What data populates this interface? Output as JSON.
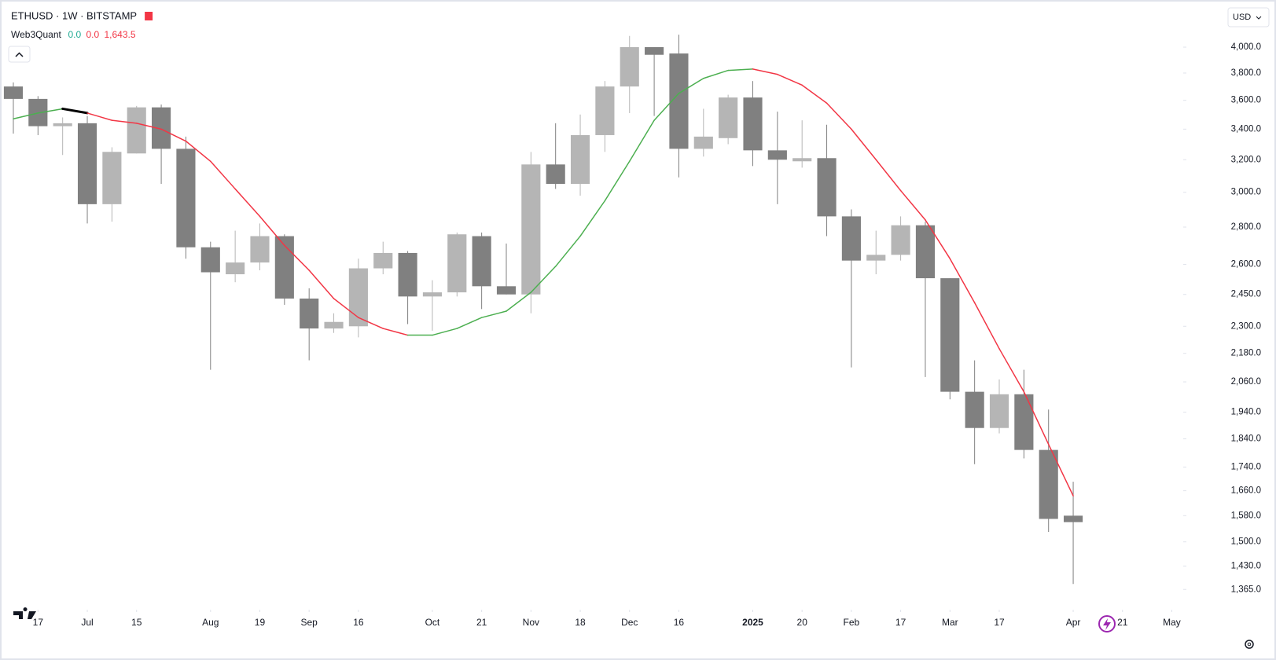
{
  "chart_data": {
    "type": "candlestick",
    "title": "ETHUSD · 1W · BITSTAMP",
    "currency": "USD",
    "indicator": {
      "name": "Web3Quant",
      "readouts": [
        {
          "text": "0.0",
          "color": "#22ab94"
        },
        {
          "text": "0.0",
          "color": "#f23645"
        },
        {
          "text": "1,643.5",
          "color": "#f23645"
        }
      ]
    },
    "up_color": "#b5b5b5",
    "down_color": "#808080",
    "open": [
      3700,
      3610,
      3420,
      3440,
      2930,
      3240,
      3550,
      3270,
      2690,
      2550,
      2610,
      2750,
      2430,
      2290,
      2300,
      2580,
      2660,
      2440,
      2460,
      2750,
      2490,
      2450,
      3170,
      3050,
      3360,
      3700,
      4000,
      3950,
      3270,
      3340,
      3620,
      3260,
      3190,
      3210,
      2860,
      2620,
      2650,
      2810,
      2530,
      2020,
      1880,
      2010,
      1800,
      1580
    ],
    "high": [
      3730,
      3630,
      3480,
      3490,
      3280,
      3560,
      3570,
      3350,
      2720,
      2780,
      2820,
      2760,
      2480,
      2360,
      2630,
      2720,
      2670,
      2520,
      2770,
      2770,
      2710,
      3250,
      3440,
      3500,
      3740,
      4090,
      4000,
      4100,
      3540,
      3640,
      3740,
      3520,
      3460,
      3430,
      2900,
      2780,
      2860,
      2830,
      2530,
      2150,
      2070,
      2110,
      1950,
      1690
    ],
    "low": [
      3370,
      3360,
      3230,
      2820,
      2830,
      3240,
      3050,
      2630,
      2110,
      2510,
      2570,
      2400,
      2150,
      2270,
      2250,
      2550,
      2310,
      2280,
      2440,
      2380,
      2450,
      2360,
      3020,
      2980,
      3250,
      3510,
      3490,
      3090,
      3220,
      3300,
      3160,
      2930,
      3150,
      2750,
      2120,
      2550,
      2620,
      2080,
      1990,
      1750,
      1860,
      1770,
      1530,
      1380
    ],
    "close": [
      3610,
      3420,
      3440,
      2930,
      3250,
      3550,
      3270,
      2690,
      2560,
      2610,
      2750,
      2430,
      2290,
      2320,
      2580,
      2660,
      2440,
      2460,
      2760,
      2490,
      2450,
      3170,
      3050,
      3360,
      3700,
      4000,
      3940,
      3270,
      3350,
      3620,
      3260,
      3200,
      3210,
      2860,
      2620,
      2650,
      2810,
      2530,
      2020,
      1880,
      2010,
      1800,
      1570,
      1560
    ],
    "line": {
      "values": [
        3470,
        3510,
        3540,
        3510,
        3460,
        3440,
        3400,
        3320,
        3190,
        3020,
        2860,
        2700,
        2570,
        2430,
        2340,
        2290,
        2260,
        2260,
        2290,
        2340,
        2370,
        2460,
        2590,
        2750,
        2950,
        3190,
        3460,
        3650,
        3760,
        3820,
        3830,
        3790,
        3710,
        3580,
        3400,
        3200,
        3010,
        2840,
        2630,
        2410,
        2200,
        2020,
        1820,
        1643.5
      ],
      "colors": [
        "#4caf50",
        "#4caf50",
        "#4caf50",
        "#000000",
        "#f23645",
        "#f23645",
        "#f23645",
        "#f23645",
        "#f23645",
        "#f23645",
        "#f23645",
        "#f23645",
        "#f23645",
        "#f23645",
        "#f23645",
        "#f23645",
        "#f23645",
        "#4caf50",
        "#4caf50",
        "#4caf50",
        "#4caf50",
        "#4caf50",
        "#4caf50",
        "#4caf50",
        "#4caf50",
        "#4caf50",
        "#4caf50",
        "#4caf50",
        "#4caf50",
        "#4caf50",
        "#4caf50",
        "#f23645",
        "#f23645",
        "#f23645",
        "#f23645",
        "#f23645",
        "#f23645",
        "#f23645",
        "#f23645",
        "#f23645",
        "#f23645",
        "#f23645",
        "#f23645",
        "#f23645"
      ]
    },
    "log_scale": true,
    "xlim": [
      -0.5,
      47.4
    ],
    "xticks": [
      {
        "value": 1,
        "label": "17"
      },
      {
        "value": 3,
        "label": "Jul"
      },
      {
        "value": 5,
        "label": "15"
      },
      {
        "value": 8,
        "label": "Aug"
      },
      {
        "value": 10,
        "label": "19"
      },
      {
        "value": 12,
        "label": "Sep"
      },
      {
        "value": 14,
        "label": "16"
      },
      {
        "value": 17,
        "label": "Oct"
      },
      {
        "value": 19,
        "label": "21"
      },
      {
        "value": 21,
        "label": "Nov"
      },
      {
        "value": 23,
        "label": "18"
      },
      {
        "value": 25,
        "label": "Dec"
      },
      {
        "value": 27,
        "label": "16"
      },
      {
        "value": 30,
        "label": "2025"
      },
      {
        "value": 32,
        "label": "20"
      },
      {
        "value": 34,
        "label": "Feb"
      },
      {
        "value": 36,
        "label": "17"
      },
      {
        "value": 38,
        "label": "Mar"
      },
      {
        "value": 40,
        "label": "17"
      },
      {
        "value": 43,
        "label": "Apr"
      },
      {
        "value": 45,
        "label": "21"
      },
      {
        "value": 47,
        "label": "May"
      }
    ],
    "ylim": [
      1330,
      4200
    ],
    "yticks": [
      {
        "value": 4000,
        "label": "4,000.0"
      },
      {
        "value": 3800,
        "label": "3,800.0"
      },
      {
        "value": 3600,
        "label": "3,600.0"
      },
      {
        "value": 3400,
        "label": "3,400.0"
      },
      {
        "value": 3200,
        "label": "3,200.0"
      },
      {
        "value": 3000,
        "label": "3,000.0"
      },
      {
        "value": 2800,
        "label": "2,800.0"
      },
      {
        "value": 2600,
        "label": "2,600.0"
      },
      {
        "value": 2450,
        "label": "2,450.0"
      },
      {
        "value": 2300,
        "label": "2,300.0"
      },
      {
        "value": 2180,
        "label": "2,180.0"
      },
      {
        "value": 2060,
        "label": "2,060.0"
      },
      {
        "value": 1940,
        "label": "1,940.0"
      },
      {
        "value": 1840,
        "label": "1,840.0"
      },
      {
        "value": 1740,
        "label": "1,740.0"
      },
      {
        "value": 1660,
        "label": "1,660.0"
      },
      {
        "value": 1580,
        "label": "1,580.0"
      },
      {
        "value": 1500,
        "label": "1,500.0"
      },
      {
        "value": 1430,
        "label": "1,430.0"
      },
      {
        "value": 1365,
        "label": "1,365.0"
      }
    ]
  }
}
